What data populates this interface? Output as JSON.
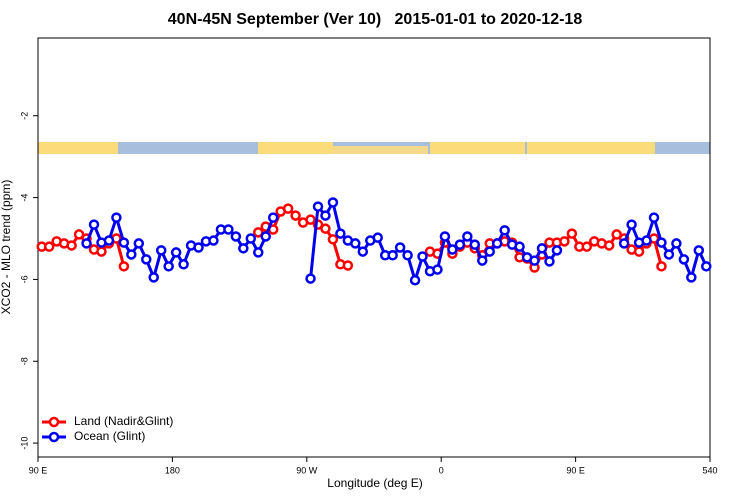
{
  "chart_data": {
    "type": "line",
    "title": "40N-45N September (Ver 10)   2015-01-01 to 2020-12-18",
    "x_label": "Longitude (deg E)",
    "y_label": "XCO2 - MLO trend (ppm)",
    "x": [
      92.5,
      97.5,
      102.5,
      107.5,
      112.5,
      117.5,
      122.5,
      127.5,
      132.5,
      137.5,
      142.5,
      147.5,
      152.5,
      157.5,
      162.5,
      167.5,
      172.5,
      177.5,
      182.5,
      187.5,
      192.5,
      197.5,
      202.5,
      207.5,
      212.5,
      217.5,
      222.5,
      227.5,
      232.5,
      237.5,
      242.5,
      247.5,
      252.5,
      257.5,
      262.5,
      267.5,
      272.5,
      277.5,
      282.5,
      287.5,
      292.5,
      297.5,
      302.5,
      307.5,
      312.5,
      317.5,
      322.5,
      327.5,
      332.5,
      337.5,
      342.5,
      347.5,
      352.5,
      357.5,
      362.5,
      367.5,
      372.5,
      377.5,
      382.5,
      387.5,
      392.5,
      397.5,
      402.5,
      407.5,
      412.5,
      417.5,
      422.5,
      427.5,
      432.5,
      437.5,
      442.5,
      447.5,
      452.5,
      457.5,
      462.5,
      467.5,
      472.5,
      477.5,
      482.5,
      487.5,
      492.5,
      497.5,
      502.5,
      507.5,
      512.5,
      517.5,
      522.5,
      527.5,
      532.5,
      537.5
    ],
    "series": [
      {
        "name": "Land (Nadir&Glint)",
        "color": "#ff0000",
        "values": [
          -5.2,
          -5.2,
          -5.07,
          -5.12,
          -5.17,
          -4.9,
          -5.0,
          -5.27,
          -5.32,
          -5.12,
          -5.0,
          -5.68,
          null,
          null,
          null,
          null,
          null,
          null,
          null,
          null,
          null,
          null,
          null,
          null,
          null,
          null,
          null,
          null,
          null,
          -4.85,
          -4.71,
          -4.78,
          -4.34,
          -4.27,
          -4.44,
          -4.61,
          -4.54,
          -4.66,
          -4.76,
          -5.02,
          -5.63,
          -5.66,
          null,
          null,
          null,
          null,
          null,
          null,
          null,
          null,
          null,
          null,
          -5.32,
          -5.37,
          -5.1,
          -5.37,
          -5.2,
          -5.1,
          -5.24,
          -5.41,
          -5.12,
          -5.12,
          -5.07,
          -5.1,
          -5.46,
          -5.49,
          -5.71,
          -5.39,
          -5.1,
          -5.1,
          -5.07,
          -4.88,
          -5.2,
          -5.2,
          -5.07,
          -5.12,
          -5.17,
          -4.9,
          -5.0,
          -5.27,
          -5.32,
          -5.12,
          -5.0,
          -5.68,
          null,
          null,
          null,
          null,
          null,
          null
        ]
      },
      {
        "name": "Ocean (Glint)",
        "color": "#0000ee",
        "values": [
          null,
          null,
          null,
          null,
          null,
          null,
          -5.12,
          -4.66,
          -5.1,
          -5.05,
          -4.49,
          -5.1,
          -5.39,
          -5.12,
          -5.51,
          -5.95,
          -5.29,
          -5.68,
          -5.34,
          -5.63,
          -5.17,
          -5.22,
          -5.07,
          -5.05,
          -4.78,
          -4.78,
          -4.95,
          -5.24,
          -5.0,
          -5.34,
          -4.95,
          -4.49,
          null,
          null,
          null,
          null,
          -5.98,
          -4.22,
          -4.44,
          -4.12,
          -4.88,
          -5.05,
          -5.12,
          -5.32,
          -5.05,
          -4.98,
          -5.41,
          -5.41,
          -5.22,
          -5.41,
          -6.02,
          -5.44,
          -5.8,
          -5.76,
          -4.95,
          -5.27,
          -5.15,
          -4.95,
          -5.15,
          -5.54,
          -5.32,
          -5.12,
          -4.8,
          -5.15,
          -5.2,
          -5.46,
          -5.54,
          -5.24,
          -5.56,
          -5.29,
          null,
          null,
          null,
          null,
          null,
          null,
          null,
          null,
          -5.12,
          -4.66,
          -5.1,
          -5.05,
          -4.49,
          -5.1,
          -5.39,
          -5.12,
          -5.51,
          -5.95,
          -5.29,
          -5.68
        ]
      }
    ],
    "xlim": [
      90,
      540
    ],
    "xticks": [
      {
        "value": 90,
        "label": "90 E"
      },
      180,
      {
        "value": 270,
        "label": "90 W"
      },
      {
        "value": 360,
        "label": "0"
      },
      {
        "value": 450,
        "label": "90 E"
      },
      540
    ],
    "ylim": [
      -10.34,
      -0.1
    ],
    "yticks": [
      -10,
      -8,
      -6,
      -4,
      -2
    ],
    "legend": "bottom-left"
  }
}
